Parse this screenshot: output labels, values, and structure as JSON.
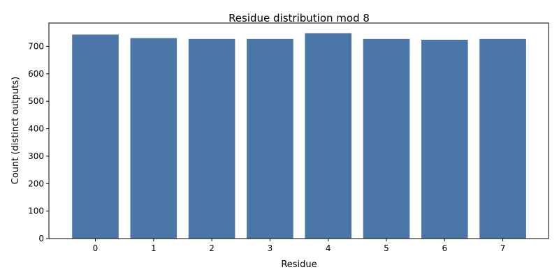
{
  "chart_data": {
    "type": "bar",
    "title": "Residue distribution mod 8",
    "xlabel": "Residue",
    "ylabel": "Count (distinct outputs)",
    "categories": [
      "0",
      "1",
      "2",
      "3",
      "4",
      "5",
      "6",
      "7"
    ],
    "values": [
      743,
      730,
      727,
      727,
      748,
      727,
      724,
      727
    ],
    "ylim": [
      0,
      785
    ],
    "yticks": [
      0,
      100,
      200,
      300,
      400,
      500,
      600,
      700
    ],
    "bar_color": "#4a76a8",
    "grid": false,
    "legend": false
  }
}
